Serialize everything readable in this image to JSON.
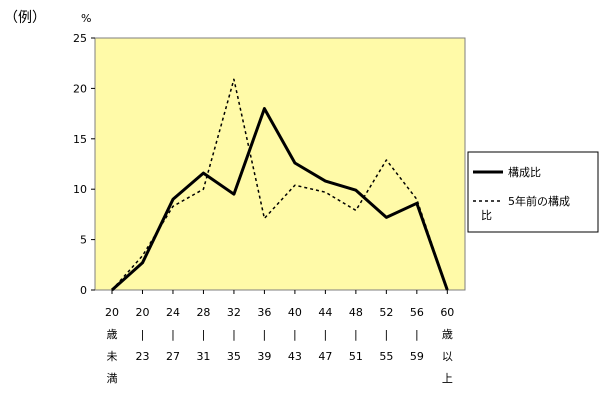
{
  "header": {
    "example_label": "（例）",
    "unit_label": "%"
  },
  "chart_data": {
    "type": "line",
    "categories": [
      [
        "20",
        "歳",
        "未",
        "満"
      ],
      [
        "20",
        "|",
        "23"
      ],
      [
        "24",
        "|",
        "27"
      ],
      [
        "28",
        "|",
        "31"
      ],
      [
        "32",
        "|",
        "35"
      ],
      [
        "36",
        "|",
        "39"
      ],
      [
        "40",
        "|",
        "43"
      ],
      [
        "44",
        "|",
        "47"
      ],
      [
        "48",
        "|",
        "51"
      ],
      [
        "52",
        "|",
        "55"
      ],
      [
        "56",
        "|",
        "59"
      ],
      [
        "60",
        "歳",
        "以",
        "上"
      ]
    ],
    "ylim": [
      0,
      25
    ],
    "yticks": [
      "0",
      "5",
      "10",
      "15",
      "20",
      "25"
    ],
    "series": [
      {
        "name": "構成比",
        "style": "solid",
        "color": "#000000",
        "values": [
          0,
          2.7,
          9.0,
          11.6,
          9.5,
          18.0,
          12.6,
          10.8,
          9.9,
          7.2,
          8.6,
          0
        ]
      },
      {
        "name": "5年前の構成比",
        "style": "dotted",
        "color": "#000000",
        "values": [
          0,
          3.4,
          8.3,
          10.0,
          20.9,
          7.1,
          10.4,
          9.7,
          7.9,
          12.9,
          9.0,
          0
        ]
      }
    ],
    "plot_background": "#fffaa8",
    "grid": false,
    "legend_position": "right"
  }
}
